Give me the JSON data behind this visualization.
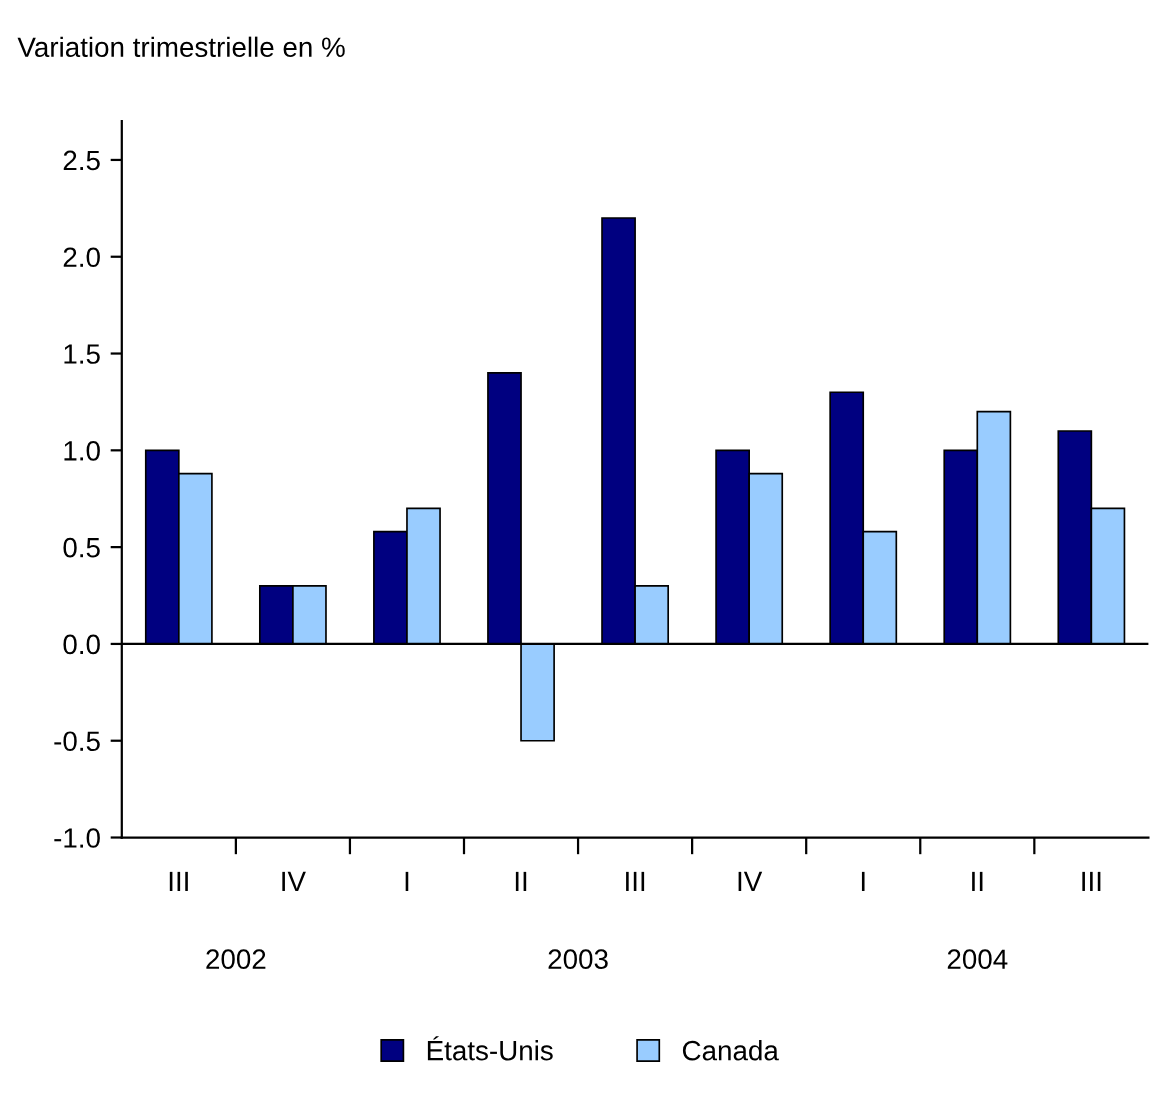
{
  "chart_data": {
    "type": "bar",
    "ylabel": "Variation trimestrielle en %",
    "categories": [
      "III",
      "IV",
      "I",
      "II",
      "III",
      "IV",
      "I",
      "II",
      "III"
    ],
    "series": [
      {
        "name": "États-Unis",
        "color": "#000080",
        "values": [
          1.0,
          0.3,
          0.58,
          1.4,
          2.2,
          1.0,
          1.3,
          1.0,
          1.1
        ]
      },
      {
        "name": "Canada",
        "color": "#99ccff",
        "values": [
          0.88,
          0.3,
          0.7,
          -0.5,
          0.3,
          0.88,
          0.58,
          1.2,
          0.7
        ]
      }
    ],
    "ylim": [
      -1.0,
      2.7
    ],
    "yticks": [
      {
        "value": -1.0,
        "label": "-1.0"
      },
      {
        "value": -0.5,
        "label": "-0.5"
      },
      {
        "value": 0.0,
        "label": "0.0"
      },
      {
        "value": 0.5,
        "label": "0.5"
      },
      {
        "value": 1.0,
        "label": "1.0"
      },
      {
        "value": 1.5,
        "label": "1.5"
      },
      {
        "value": 2.0,
        "label": "2.0"
      },
      {
        "value": 2.5,
        "label": "2.5"
      }
    ],
    "ref_lines": [
      {
        "axis": "y",
        "value": 0,
        "color": "#000000"
      }
    ],
    "annotations": [
      "2002",
      "2003",
      "2004"
    ],
    "grid": false,
    "legend": "bottom"
  }
}
